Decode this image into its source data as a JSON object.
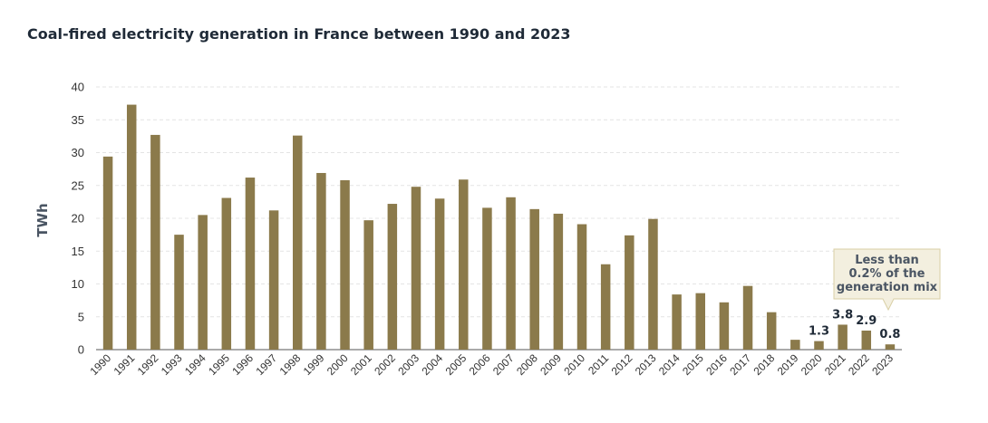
{
  "chart_data": {
    "type": "bar",
    "title": "Coal-fired electricity generation in France between 1990 and 2023",
    "ylabel": "TWh",
    "xlabel": "",
    "ylim": [
      0,
      40
    ],
    "yticks": [
      0,
      5,
      10,
      15,
      20,
      25,
      30,
      35,
      40
    ],
    "grid": true,
    "bar_color": "#8b7a4b",
    "categories": [
      "1990",
      "1991",
      "1992",
      "1993",
      "1994",
      "1995",
      "1996",
      "1997",
      "1998",
      "1999",
      "2000",
      "2001",
      "2002",
      "2003",
      "2004",
      "2005",
      "2006",
      "2007",
      "2008",
      "2009",
      "2010",
      "2011",
      "2012",
      "2013",
      "2014",
      "2015",
      "2016",
      "2017",
      "2018",
      "2019",
      "2020",
      "2021",
      "2022",
      "2023"
    ],
    "values": [
      29.4,
      37.3,
      32.7,
      17.5,
      20.5,
      23.1,
      26.2,
      21.2,
      32.6,
      26.9,
      25.8,
      19.7,
      22.2,
      24.8,
      23.0,
      25.9,
      21.6,
      23.2,
      21.4,
      20.7,
      19.1,
      13.0,
      17.4,
      19.9,
      8.4,
      8.6,
      7.2,
      9.7,
      5.7,
      1.5,
      1.3,
      3.8,
      2.9,
      0.8
    ],
    "data_labels": [
      {
        "category": "2020",
        "text": "1.3"
      },
      {
        "category": "2021",
        "text": "3.8"
      },
      {
        "category": "2022",
        "text": "2.9"
      },
      {
        "category": "2023",
        "text": "0.8"
      }
    ],
    "annotation": {
      "lines": [
        "Less than",
        "0.2% of the",
        "generation mix"
      ],
      "background": "#f3efdf",
      "border": "#d9cfa6"
    }
  }
}
